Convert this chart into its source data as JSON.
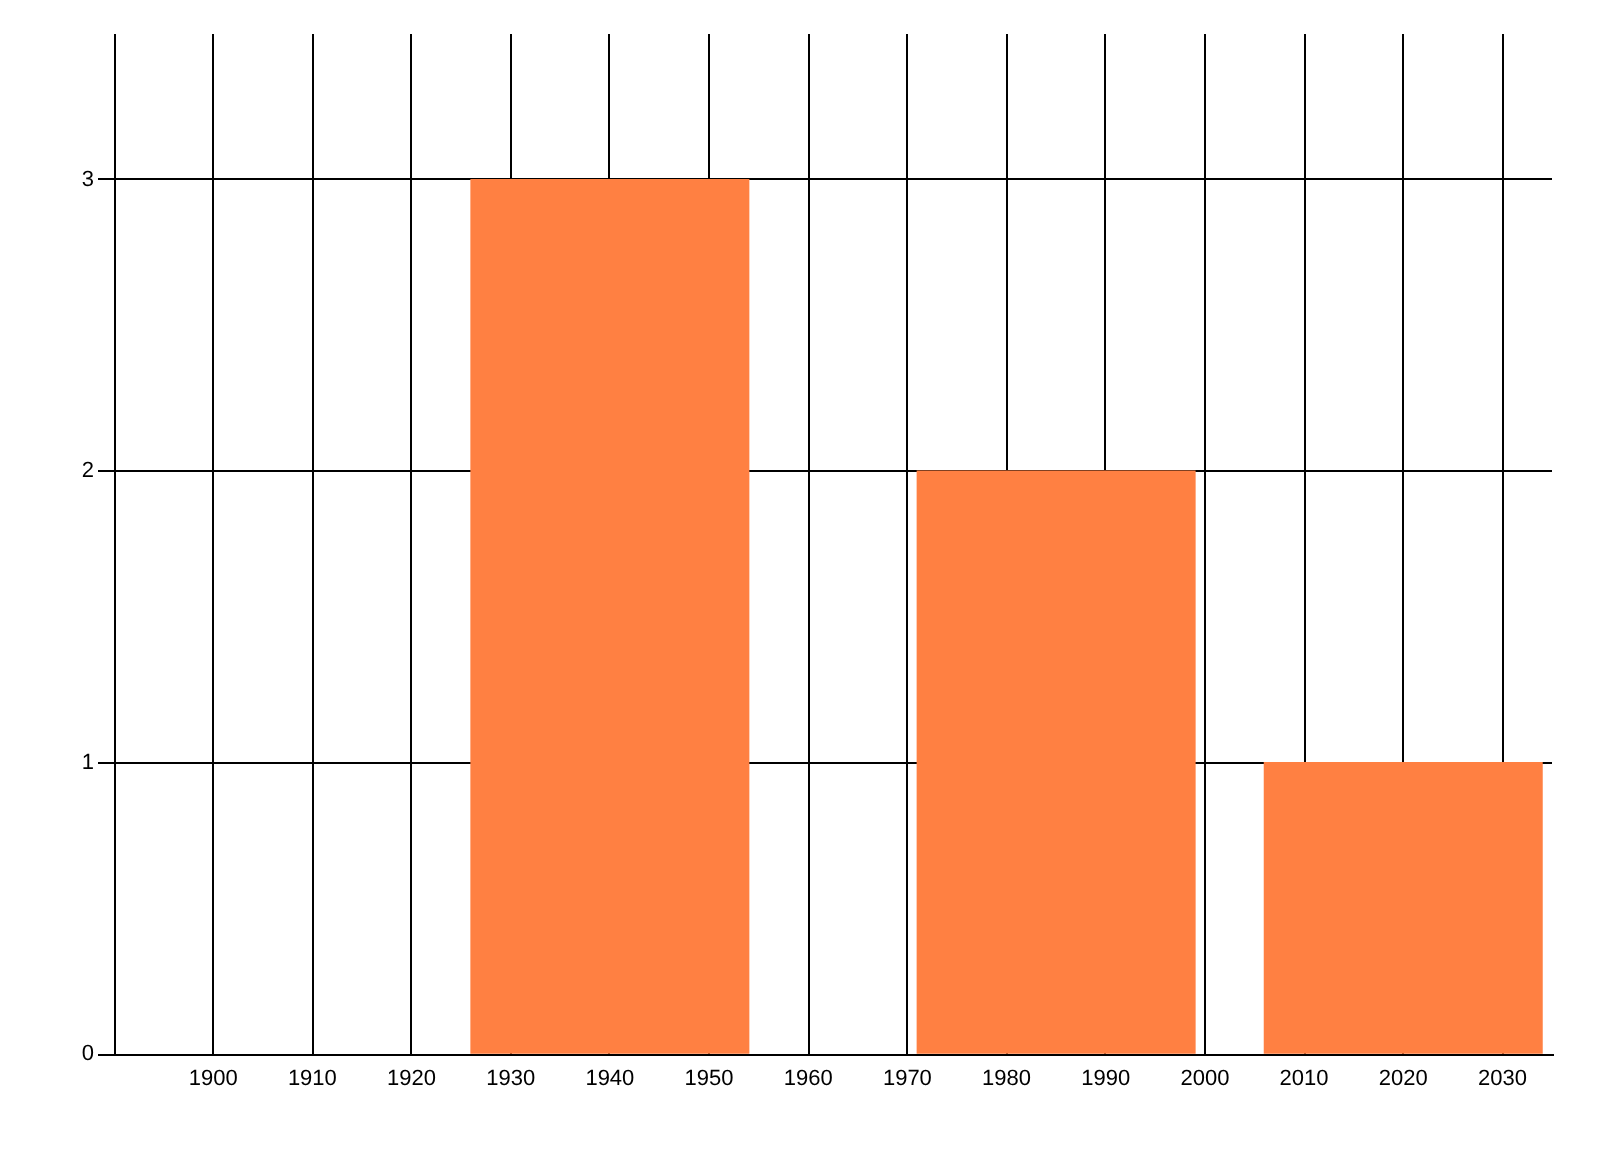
{
  "chart_data": {
    "type": "bar",
    "x": [
      1940,
      1985,
      2020
    ],
    "values": [
      3,
      2,
      1
    ],
    "color": "#ff8042",
    "xlim": [
      1890,
      2035
    ],
    "xticks": [
      1900,
      1910,
      1920,
      1930,
      1940,
      1950,
      1960,
      1970,
      1980,
      1990,
      2000,
      2010,
      2020,
      2030
    ],
    "ylim": [
      0,
      3.5
    ],
    "yticks": [
      0,
      1,
      2,
      3
    ],
    "grid": true
  }
}
